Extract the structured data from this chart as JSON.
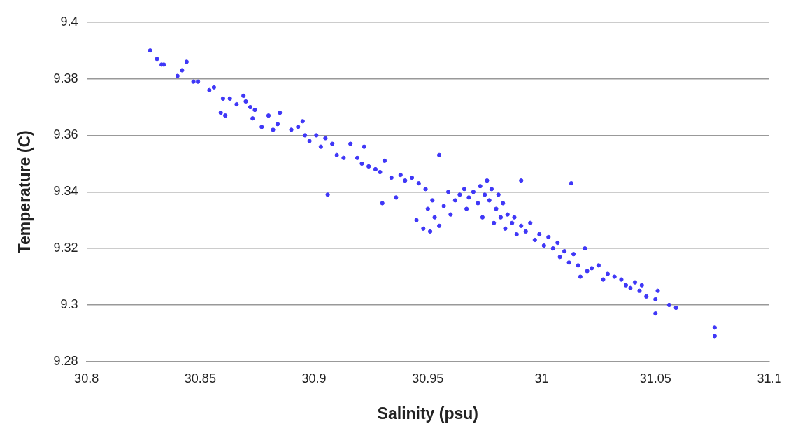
{
  "chart_data": {
    "type": "scatter",
    "xlabel": "Salinity (psu)",
    "ylabel": "Temperature (C)",
    "xlim": [
      30.8,
      31.1
    ],
    "xticks": [
      30.8,
      30.85,
      30.9,
      30.95,
      31,
      31.05,
      31.1
    ],
    "ylim": [
      9.28,
      9.4
    ],
    "yticks": [
      9.28,
      9.3,
      9.32,
      9.34,
      9.36,
      9.38,
      9.4
    ],
    "grid": "y",
    "marker": "circle",
    "color": "#3f37f7",
    "x": [
      30.828,
      30.831,
      30.833,
      30.834,
      30.84,
      30.842,
      30.844,
      30.847,
      30.849,
      30.854,
      30.856,
      30.859,
      30.86,
      30.861,
      30.863,
      30.866,
      30.869,
      30.87,
      30.872,
      30.873,
      30.874,
      30.877,
      30.88,
      30.882,
      30.884,
      30.885,
      30.89,
      30.893,
      30.895,
      30.896,
      30.898,
      30.901,
      30.903,
      30.905,
      30.906,
      30.908,
      30.91,
      30.913,
      30.916,
      30.919,
      30.921,
      30.922,
      30.924,
      30.927,
      30.929,
      30.93,
      30.931,
      30.934,
      30.936,
      30.938,
      30.94,
      30.943,
      30.945,
      30.946,
      30.948,
      30.949,
      30.95,
      30.951,
      30.952,
      30.953,
      30.955,
      30.955,
      30.957,
      30.959,
      30.96,
      30.962,
      30.964,
      30.966,
      30.967,
      30.968,
      30.97,
      30.972,
      30.973,
      30.974,
      30.975,
      30.976,
      30.977,
      30.978,
      30.979,
      30.98,
      30.981,
      30.982,
      30.983,
      30.984,
      30.985,
      30.987,
      30.988,
      30.989,
      30.991,
      30.991,
      30.993,
      30.995,
      30.997,
      30.999,
      31.001,
      31.003,
      31.005,
      31.007,
      31.008,
      31.01,
      31.012,
      31.013,
      31.014,
      31.016,
      31.017,
      31.019,
      31.02,
      31.022,
      31.025,
      31.027,
      31.029,
      31.032,
      31.035,
      31.037,
      31.039,
      31.041,
      31.043,
      31.044,
      31.046,
      31.05,
      31.05,
      31.051,
      31.056,
      31.059,
      31.076,
      31.076
    ],
    "values": [
      9.39,
      9.387,
      9.385,
      9.385,
      9.381,
      9.383,
      9.386,
      9.379,
      9.379,
      9.376,
      9.377,
      9.368,
      9.373,
      9.367,
      9.373,
      9.371,
      9.374,
      9.372,
      9.37,
      9.366,
      9.369,
      9.363,
      9.367,
      9.362,
      9.364,
      9.368,
      9.362,
      9.363,
      9.365,
      9.36,
      9.358,
      9.36,
      9.356,
      9.359,
      9.339,
      9.357,
      9.353,
      9.352,
      9.357,
      9.352,
      9.35,
      9.356,
      9.349,
      9.348,
      9.347,
      9.336,
      9.351,
      9.345,
      9.338,
      9.346,
      9.344,
      9.345,
      9.33,
      9.343,
      9.327,
      9.341,
      9.334,
      9.326,
      9.337,
      9.331,
      9.353,
      9.328,
      9.335,
      9.34,
      9.332,
      9.337,
      9.339,
      9.341,
      9.334,
      9.338,
      9.34,
      9.336,
      9.342,
      9.331,
      9.339,
      9.344,
      9.337,
      9.341,
      9.329,
      9.334,
      9.339,
      9.331,
      9.336,
      9.327,
      9.332,
      9.329,
      9.331,
      9.325,
      9.344,
      9.328,
      9.326,
      9.329,
      9.323,
      9.325,
      9.321,
      9.324,
      9.32,
      9.322,
      9.317,
      9.319,
      9.315,
      9.343,
      9.318,
      9.314,
      9.31,
      9.32,
      9.312,
      9.313,
      9.314,
      9.309,
      9.311,
      9.31,
      9.309,
      9.307,
      9.306,
      9.308,
      9.305,
      9.307,
      9.303,
      9.302,
      9.297,
      9.305,
      9.3,
      9.299,
      9.292,
      9.289
    ]
  }
}
